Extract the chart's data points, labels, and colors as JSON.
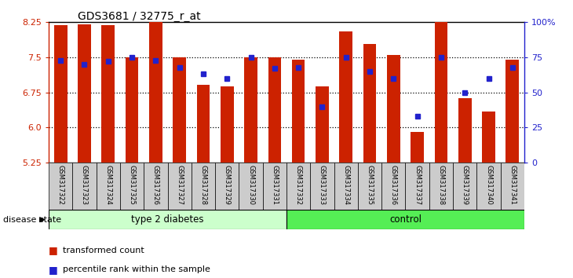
{
  "title": "GDS3681 / 32775_r_at",
  "samples": [
    "GSM317322",
    "GSM317323",
    "GSM317324",
    "GSM317325",
    "GSM317326",
    "GSM317327",
    "GSM317328",
    "GSM317329",
    "GSM317330",
    "GSM317331",
    "GSM317332",
    "GSM317333",
    "GSM317334",
    "GSM317335",
    "GSM317336",
    "GSM317337",
    "GSM317338",
    "GSM317339",
    "GSM317340",
    "GSM317341"
  ],
  "transformed_count": [
    8.18,
    8.2,
    8.18,
    7.5,
    8.32,
    7.5,
    6.92,
    6.88,
    7.5,
    7.5,
    7.45,
    6.88,
    8.05,
    7.78,
    7.55,
    5.9,
    8.3,
    6.62,
    6.35,
    7.45
  ],
  "percentile_rank": [
    73,
    70,
    72,
    75,
    73,
    68,
    63,
    60,
    75,
    67,
    68,
    40,
    75,
    65,
    60,
    33,
    75,
    50,
    60,
    68
  ],
  "ymin": 5.25,
  "ymax": 8.25,
  "yright_min": 0,
  "yright_max": 100,
  "bar_color": "#cc2200",
  "dot_color": "#2222cc",
  "group1_label": "type 2 diabetes",
  "group2_label": "control",
  "group1_color": "#ccffcc",
  "group2_color": "#55ee55",
  "disease_state_label": "disease state",
  "legend_bar": "transformed count",
  "legend_dot": "percentile rank within the sample",
  "yticks_left": [
    5.25,
    6.0,
    6.75,
    7.5,
    8.25
  ],
  "yticks_right": [
    0,
    25,
    50,
    75,
    100
  ],
  "ytick_right_labels": [
    "0",
    "25",
    "50",
    "75",
    "100%"
  ],
  "n_group1": 10,
  "n_group2": 10
}
